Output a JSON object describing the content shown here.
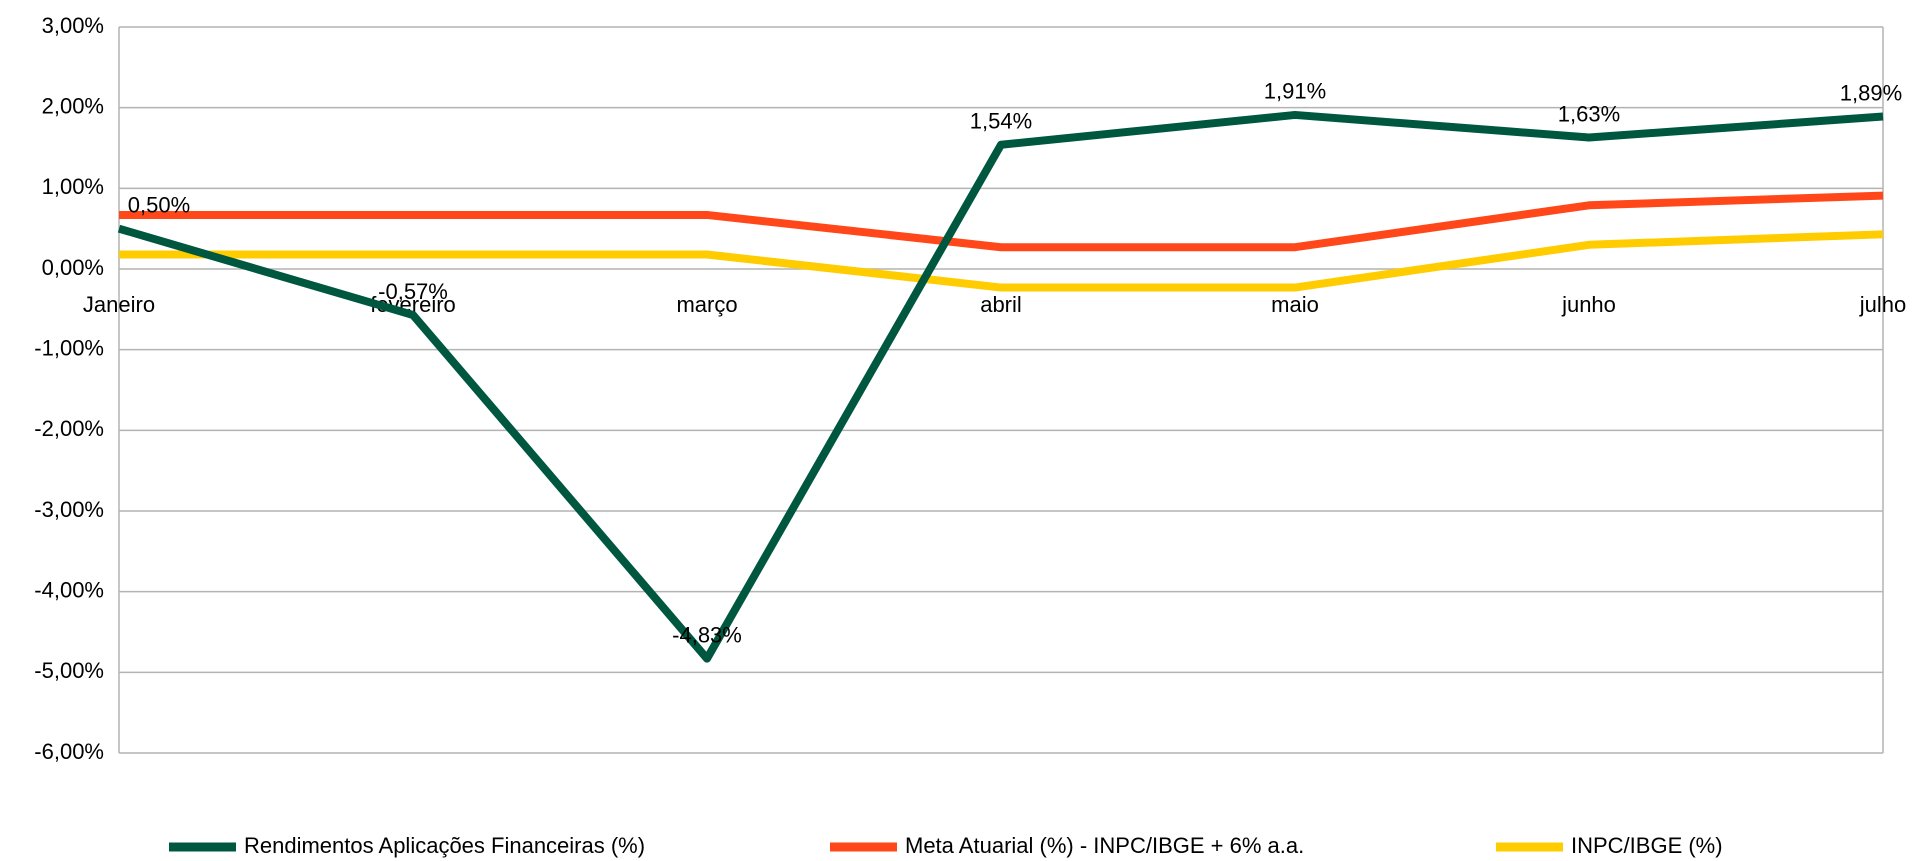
{
  "chart_data": {
    "type": "line",
    "categories": [
      "Janeiro",
      "fevereiro",
      "março",
      "abril",
      "maio",
      "junho",
      "julho"
    ],
    "series": [
      {
        "name": "Rendimentos Aplicações Financeiras (%)",
        "color": "#00573f",
        "values": [
          0.5,
          -0.57,
          -4.83,
          1.54,
          1.91,
          1.63,
          1.89
        ],
        "value_labels": [
          "0,50%",
          "-0,57%",
          "-4,83%",
          "1,54%",
          "1,91%",
          "1,63%",
          "1,89%"
        ]
      },
      {
        "name": "Meta Atuarial (%) - INPC/IBGE + 6% a.a.",
        "color": "#ff4719",
        "values": [
          0.67,
          0.67,
          0.67,
          0.27,
          0.27,
          0.79,
          0.91
        ]
      },
      {
        "name": "INPC/IBGE (%)",
        "color": "#ffcc00",
        "values": [
          0.18,
          0.18,
          0.18,
          -0.23,
          -0.23,
          0.3,
          0.43
        ]
      }
    ],
    "ylim": [
      -6,
      3
    ],
    "yticks": [
      {
        "value": 3,
        "label": "3,00%"
      },
      {
        "value": 2,
        "label": "2,00%"
      },
      {
        "value": 1,
        "label": "1,00%"
      },
      {
        "value": 0,
        "label": "0,00%"
      },
      {
        "value": -1,
        "label": "-1,00%"
      },
      {
        "value": -2,
        "label": "-2,00%"
      },
      {
        "value": -3,
        "label": "-3,00%"
      },
      {
        "value": -4,
        "label": "-4,00%"
      },
      {
        "value": -5,
        "label": "-5,00%"
      },
      {
        "value": -6,
        "label": "-6,00%"
      }
    ],
    "grid": true,
    "legend": "bottom"
  }
}
